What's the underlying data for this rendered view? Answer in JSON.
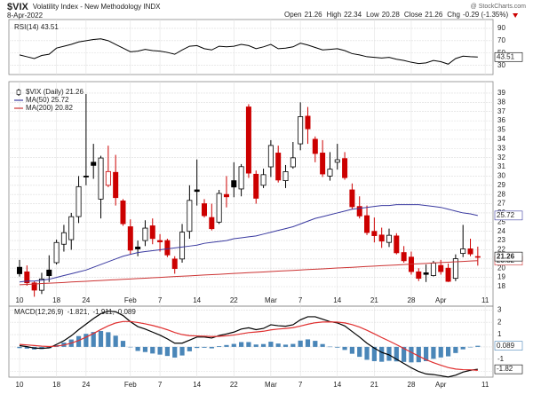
{
  "header": {
    "symbol": "$VIX",
    "description": "Volatility Index - New Methodology INDX",
    "date": "8-Apr-2022",
    "source": "@ StockCharts.com",
    "quote": [
      {
        "label": "Open",
        "value": 21.26
      },
      {
        "label": "High",
        "value": 22.34
      },
      {
        "label": "Low",
        "value": 20.28
      },
      {
        "label": "Close",
        "value": 21.26
      },
      {
        "label": "Chg",
        "value": "-0.29 (-1.35%)"
      }
    ]
  },
  "chart_data": [
    {
      "type": "line",
      "series": [
        {
          "name": "RSI(14) 43.51",
          "color": "#000000",
          "values": [
            47,
            44,
            41,
            46,
            48,
            58,
            61,
            64,
            68,
            70,
            72,
            73,
            70,
            64,
            58,
            52,
            53,
            56,
            54,
            53,
            51,
            48,
            55,
            61,
            62,
            57,
            55,
            61,
            60,
            61,
            64,
            62,
            57,
            60,
            64,
            57,
            58,
            60,
            66,
            63,
            59,
            55,
            56,
            57,
            54,
            49,
            47,
            44,
            43,
            42,
            43,
            40,
            38,
            35,
            33,
            34,
            38,
            36,
            32,
            41,
            45,
            44,
            43.51,
            null
          ]
        }
      ],
      "ylim": [
        18,
        100
      ],
      "yticks": [
        90,
        70,
        50,
        30
      ],
      "grid": true
    },
    {
      "type": "candlestick",
      "name": "$VIX (Daily) 21.26",
      "categories": [
        "10",
        null,
        null,
        null,
        null,
        "18",
        null,
        null,
        null,
        "24",
        null,
        null,
        null,
        null,
        null,
        "Feb",
        null,
        null,
        null,
        "7",
        null,
        null,
        null,
        null,
        "14",
        null,
        null,
        null,
        null,
        "22",
        null,
        null,
        null,
        null,
        "Mar",
        null,
        null,
        null,
        "7",
        null,
        null,
        null,
        null,
        "14",
        null,
        null,
        null,
        null,
        "21",
        null,
        null,
        null,
        null,
        "28",
        null,
        null,
        null,
        "Apr",
        null,
        null,
        null,
        null,
        null,
        "11"
      ],
      "open": [
        20.1,
        19.6,
        18.4,
        17.6,
        19.8,
        20.6,
        22.6,
        23.1,
        25.6,
        30.0,
        31.5,
        27.5,
        29.0,
        30.4,
        27.3,
        24.5,
        22.3,
        23.0,
        24.6,
        23.0,
        23.0,
        21.0,
        21.0,
        24.0,
        28.5,
        27.0,
        25.5,
        25.0,
        28.0,
        29.5,
        28.6,
        37.5,
        30.2,
        29.0,
        31.0,
        32.5,
        29.5,
        31.0,
        33.5,
        36.5,
        34.0,
        32.5,
        30.0,
        31.5,
        31.9,
        28.5,
        26.7,
        25.7,
        24.0,
        23.6,
        22.8,
        23.5,
        21.7,
        21.2,
        19.6,
        19.5,
        19.2,
        20.3,
        20.0,
        18.9,
        21.6,
        22.1,
        21.26,
        null
      ],
      "high": [
        20.9,
        20.3,
        18.6,
        19.5,
        21.4,
        23.1,
        24.7,
        26.0,
        30.0,
        38.9,
        33.5,
        32.2,
        33.3,
        32.3,
        27.5,
        25.3,
        23.0,
        25.2,
        25.4,
        23.7,
        23.2,
        21.3,
        24.8,
        29.0,
        31.8,
        27.5,
        27.0,
        28.5,
        30.0,
        31.5,
        31.3,
        37.8,
        30.6,
        30.8,
        33.9,
        33.3,
        31.2,
        33.7,
        38.0,
        37.5,
        34.3,
        33.9,
        32.6,
        33.5,
        32.6,
        29.2,
        27.8,
        26.8,
        25.5,
        24.4,
        24.3,
        23.8,
        22.4,
        21.8,
        20.0,
        20.4,
        20.8,
        20.9,
        20.5,
        21.5,
        24.7,
        23.2,
        22.34,
        null
      ],
      "low": [
        19.1,
        18.1,
        16.9,
        17.2,
        18.5,
        20.4,
        21.8,
        22.0,
        24.9,
        29.0,
        29.7,
        25.4,
        28.8,
        26.8,
        24.6,
        21.5,
        21.3,
        22.4,
        22.6,
        21.8,
        21.2,
        19.4,
        20.6,
        23.2,
        26.8,
        25.5,
        24.1,
        24.8,
        26.6,
        27.7,
        27.8,
        29.8,
        27.0,
        28.7,
        29.9,
        29.3,
        28.7,
        30.8,
        32.8,
        33.5,
        31.5,
        29.9,
        29.5,
        30.7,
        29.6,
        26.4,
        25.4,
        23.6,
        22.8,
        22.2,
        22.3,
        21.5,
        20.6,
        19.3,
        18.6,
        18.5,
        19.1,
        19.3,
        18.5,
        18.6,
        21.2,
        21.3,
        20.28,
        null
      ],
      "close": [
        19.4,
        18.41,
        17.62,
        18.83,
        19.19,
        22.79,
        23.85,
        25.59,
        28.85,
        29.9,
        31.16,
        31.96,
        30.49,
        27.66,
        24.83,
        21.96,
        22.09,
        24.35,
        23.22,
        22.86,
        21.44,
        19.96,
        23.91,
        27.36,
        28.33,
        25.7,
        24.29,
        28.11,
        27.75,
        28.81,
        31.02,
        30.32,
        27.59,
        30.15,
        33.32,
        29.57,
        30.48,
        31.98,
        36.45,
        35.13,
        32.45,
        30.23,
        30.75,
        31.77,
        29.83,
        26.67,
        25.67,
        23.87,
        23.53,
        22.94,
        23.57,
        21.67,
        20.81,
        19.63,
        18.9,
        19.33,
        20.56,
        19.63,
        18.57,
        21.03,
        22.1,
        21.55,
        21.26,
        null
      ],
      "up_color": "#000000",
      "down_color": "#cc0000",
      "series": [
        {
          "name": "MA(50) 25.72",
          "color": "#3a3aa0",
          "values": [
            18.5,
            18.6,
            18.6,
            18.7,
            18.8,
            19.0,
            19.2,
            19.4,
            19.6,
            19.8,
            20.1,
            20.4,
            20.7,
            21.0,
            21.3,
            21.5,
            21.7,
            21.8,
            21.9,
            22.0,
            22.1,
            22.2,
            22.3,
            22.4,
            22.5,
            22.7,
            22.8,
            22.9,
            23.0,
            23.2,
            23.3,
            23.4,
            23.5,
            23.7,
            23.9,
            24.1,
            24.3,
            24.5,
            24.8,
            25.1,
            25.4,
            25.6,
            25.8,
            26.0,
            26.2,
            26.4,
            26.5,
            26.6,
            26.7,
            26.8,
            26.8,
            26.9,
            26.9,
            26.9,
            26.9,
            26.8,
            26.7,
            26.6,
            26.4,
            26.2,
            26.0,
            25.9,
            25.72,
            null
          ]
        },
        {
          "name": "MA(200) 20.82",
          "color": "#cc3333",
          "values": [
            18.2,
            18.24,
            18.28,
            18.33,
            18.37,
            18.41,
            18.45,
            18.5,
            18.54,
            18.58,
            18.62,
            18.66,
            18.71,
            18.75,
            18.79,
            18.83,
            18.88,
            18.92,
            18.96,
            19.0,
            19.05,
            19.09,
            19.13,
            19.17,
            19.21,
            19.26,
            19.3,
            19.34,
            19.38,
            19.43,
            19.47,
            19.51,
            19.55,
            19.59,
            19.64,
            19.68,
            19.72,
            19.76,
            19.81,
            19.85,
            19.89,
            19.93,
            19.97,
            20.02,
            20.06,
            20.1,
            20.14,
            20.19,
            20.23,
            20.27,
            20.31,
            20.35,
            20.4,
            20.44,
            20.48,
            20.52,
            20.57,
            20.61,
            20.65,
            20.69,
            20.73,
            20.78,
            20.82,
            null
          ]
        }
      ],
      "ylim": [
        15.88,
        39.96
      ],
      "yticks": [
        39,
        38,
        37,
        36,
        35,
        34,
        33,
        32,
        31,
        30,
        29,
        28,
        27,
        26,
        25,
        24,
        23,
        22,
        21,
        20,
        19,
        18
      ],
      "grid": true
    },
    {
      "type": "macd",
      "title": "MACD(12,26,9)",
      "categories": [
        "10",
        null,
        null,
        null,
        null,
        "18",
        null,
        null,
        null,
        "24",
        null,
        null,
        null,
        null,
        null,
        "Feb",
        null,
        null,
        null,
        "7",
        null,
        null,
        null,
        null,
        "14",
        null,
        null,
        null,
        null,
        "22",
        null,
        null,
        null,
        null,
        "Mar",
        null,
        null,
        null,
        "7",
        null,
        null,
        null,
        null,
        "14",
        null,
        null,
        null,
        null,
        "21",
        null,
        null,
        null,
        null,
        "28",
        null,
        null,
        null,
        "Apr",
        null,
        null,
        null,
        null,
        null,
        "11"
      ],
      "series": [
        {
          "name": "-1.821,",
          "color": "#000000",
          "kind": "line",
          "values": [
            0.1,
            0.02,
            -0.1,
            -0.12,
            -0.08,
            0.2,
            0.5,
            0.9,
            1.4,
            1.85,
            2.3,
            2.7,
            2.9,
            2.85,
            2.55,
            2.05,
            1.65,
            1.45,
            1.2,
            0.95,
            0.65,
            0.3,
            0.3,
            0.55,
            0.8,
            0.8,
            0.72,
            0.92,
            1.05,
            1.2,
            1.45,
            1.55,
            1.4,
            1.5,
            1.8,
            1.72,
            1.68,
            1.8,
            2.2,
            2.45,
            2.45,
            2.25,
            2.05,
            1.95,
            1.7,
            1.25,
            0.8,
            0.3,
            -0.1,
            -0.45,
            -0.65,
            -1.0,
            -1.35,
            -1.7,
            -2.0,
            -2.2,
            -2.25,
            -2.35,
            -2.45,
            -2.3,
            -2.05,
            -1.9,
            -1.821,
            null
          ],
          "value_labels": [
            null,
            null,
            null,
            null,
            null,
            null,
            null,
            null,
            null,
            null,
            null,
            null,
            null,
            null,
            null,
            null,
            null,
            null,
            null,
            null,
            null,
            null,
            null,
            null,
            null,
            null,
            null,
            null,
            null,
            null,
            null,
            null,
            null,
            null,
            null,
            null,
            null,
            null,
            null,
            null,
            null,
            null,
            null,
            null,
            null,
            null,
            null,
            null,
            null,
            null,
            null,
            null,
            null,
            null,
            null,
            null,
            null,
            null,
            null,
            null,
            null,
            null,
            "-1.82",
            null
          ]
        },
        {
          "name": "-1.911,",
          "color": "#e03030",
          "kind": "line",
          "values": [
            0.2,
            0.16,
            0.11,
            0.06,
            0.03,
            0.06,
            0.15,
            0.3,
            0.52,
            0.79,
            1.09,
            1.41,
            1.71,
            1.94,
            2.06,
            2.06,
            1.98,
            1.87,
            1.74,
            1.58,
            1.39,
            1.17,
            1.0,
            0.91,
            0.89,
            0.87,
            0.84,
            0.86,
            0.9,
            0.96,
            1.06,
            1.16,
            1.21,
            1.27,
            1.38,
            1.45,
            1.5,
            1.56,
            1.69,
            1.84,
            1.96,
            2.02,
            2.03,
            2.01,
            1.95,
            1.81,
            1.61,
            1.35,
            1.06,
            0.76,
            0.48,
            0.18,
            -0.13,
            -0.44,
            -0.75,
            -1.04,
            -1.28,
            -1.49,
            -1.68,
            -1.8,
            -1.85,
            -1.86,
            -1.911,
            null
          ]
        },
        {
          "name": "0.089",
          "color": "#4a86b8",
          "kind": "bar",
          "values": [
            -0.1,
            -0.14,
            -0.21,
            -0.18,
            -0.11,
            0.14,
            0.35,
            0.6,
            0.88,
            1.06,
            1.21,
            1.29,
            1.19,
            0.91,
            0.49,
            -0.01,
            -0.33,
            -0.42,
            -0.54,
            -0.63,
            -0.74,
            -0.87,
            -0.7,
            -0.36,
            -0.09,
            -0.07,
            -0.12,
            0.06,
            0.15,
            0.24,
            0.39,
            0.39,
            0.19,
            0.23,
            0.42,
            0.27,
            0.18,
            0.24,
            0.51,
            0.61,
            0.49,
            0.23,
            0.02,
            -0.06,
            -0.25,
            -0.56,
            -0.81,
            -1.05,
            -1.16,
            -1.21,
            -1.13,
            -1.18,
            -1.22,
            -1.26,
            -1.25,
            -1.16,
            -0.97,
            -0.86,
            -0.77,
            -0.5,
            -0.2,
            -0.04,
            0.089,
            null
          ]
        }
      ],
      "ylim": [
        -2.46,
        3.31
      ],
      "yticks": [
        3,
        2,
        1,
        0,
        -1,
        -2
      ],
      "grid": true
    }
  ]
}
